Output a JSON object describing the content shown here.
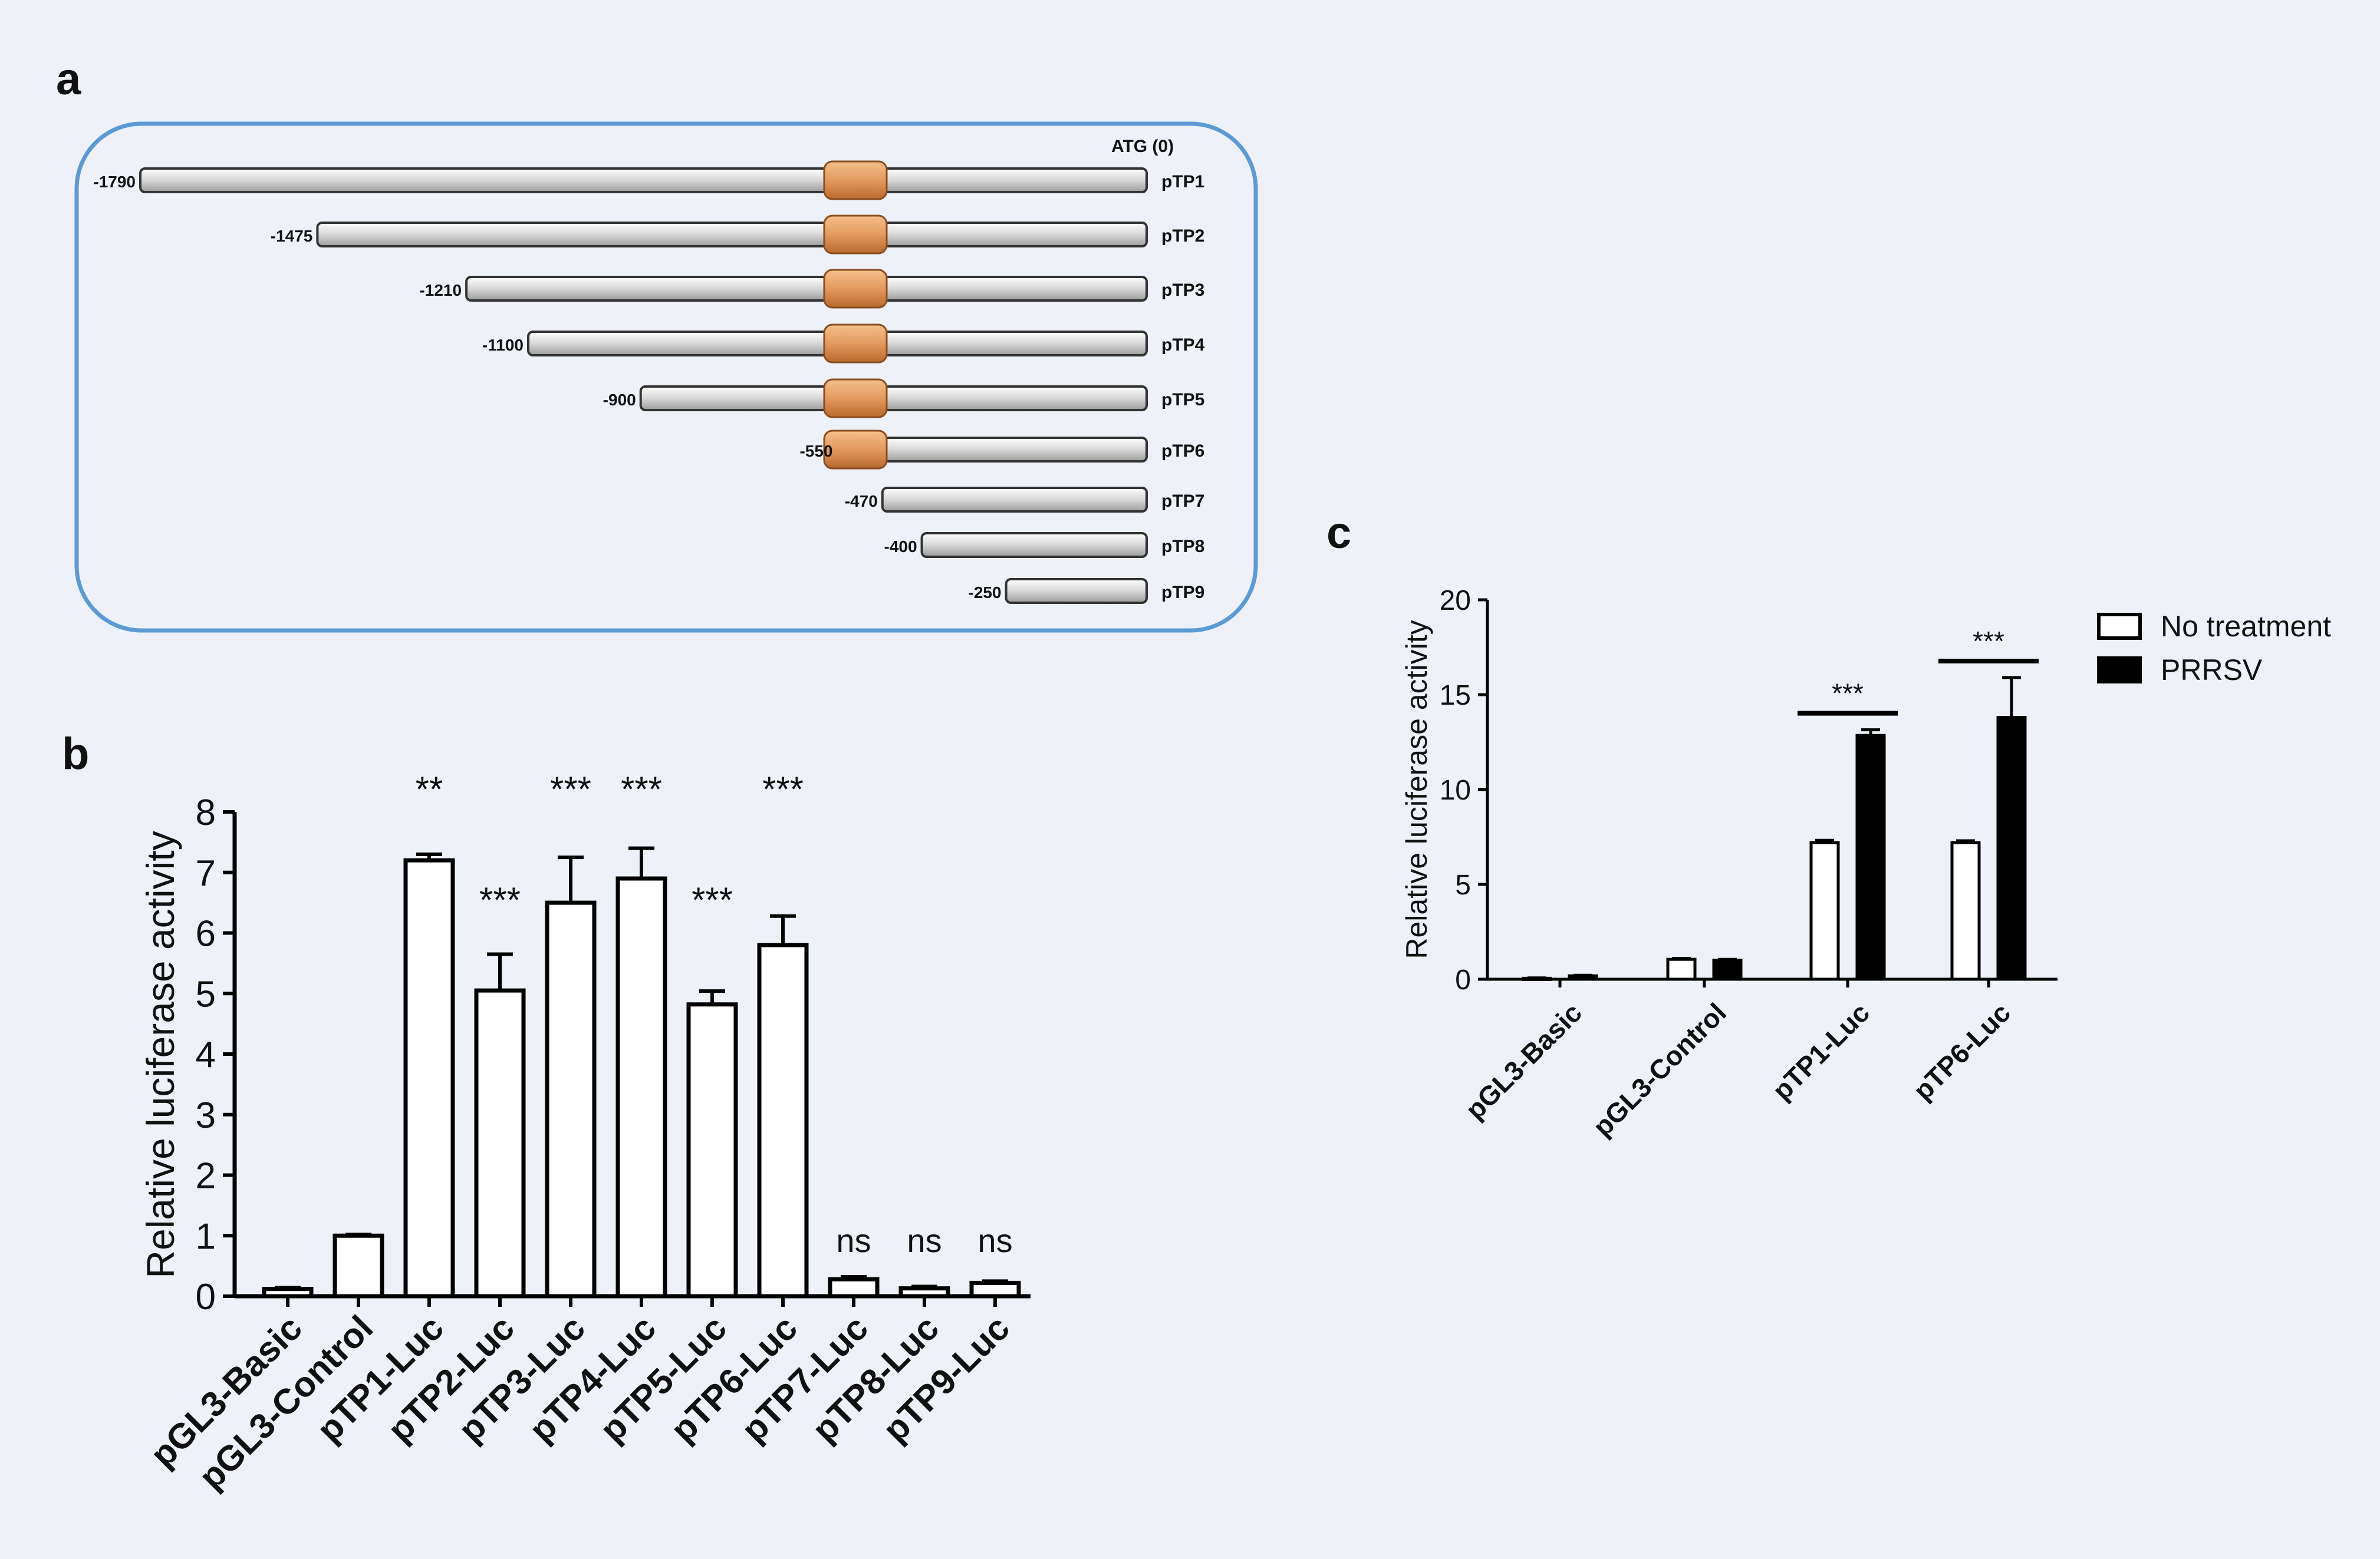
{
  "panels": {
    "a": {
      "letter": "a",
      "atg_label": "ATG  (0)",
      "constructs": [
        {
          "name": "pTP1",
          "start": -1790,
          "start_label": "-1790",
          "has_element": true
        },
        {
          "name": "pTP2",
          "start": -1475,
          "start_label": "-1475",
          "has_element": true
        },
        {
          "name": "pTP3",
          "start": -1210,
          "start_label": "-1210",
          "has_element": true
        },
        {
          "name": "pTP4",
          "start": -1100,
          "start_label": "-1100",
          "has_element": true
        },
        {
          "name": "pTP5",
          "start": -900,
          "start_label": "-900",
          "has_element": true
        },
        {
          "name": "pTP6",
          "start": -550,
          "start_label": "-550",
          "has_element": true
        },
        {
          "name": "pTP7",
          "start": -470,
          "start_label": "-470",
          "has_element": false
        },
        {
          "name": "pTP8",
          "start": -400,
          "start_label": "-400",
          "has_element": false
        },
        {
          "name": "pTP9",
          "start": -250,
          "start_label": "-250",
          "has_element": false
        }
      ],
      "colors": {
        "border": "#5b9bd5",
        "element": "#e39a5f",
        "bar": "#dcdcdc"
      }
    },
    "b": {
      "letter": "b"
    },
    "c": {
      "letter": "c"
    }
  },
  "chart_data": [
    {
      "id": "b",
      "type": "bar",
      "title": "",
      "xlabel": "",
      "ylabel": "Relative luciferase activity",
      "ylim": [
        0,
        8
      ],
      "yticks": [
        "0",
        "1",
        "2",
        "3",
        "4",
        "5",
        "6",
        "7",
        "8"
      ],
      "categories": [
        "pGL3-Basic",
        "pGL3-Control",
        "pTP1-Luc",
        "pTP2-Luc",
        "pTP3-Luc",
        "pTP4-Luc",
        "pTP5-Luc",
        "pTP6-Luc",
        "pTP7-Luc",
        "pTP8-Luc",
        "pTP9-Luc"
      ],
      "values": [
        0.12,
        1.0,
        7.2,
        5.05,
        6.5,
        6.9,
        4.82,
        5.8,
        0.28,
        0.13,
        0.22
      ],
      "errors": [
        0.02,
        0.02,
        0.1,
        0.6,
        0.75,
        0.5,
        0.22,
        0.48,
        0.04,
        0.03,
        0.03
      ],
      "annotations": [
        "",
        "",
        "**",
        "***",
        "***",
        "***",
        "***",
        "***",
        "ns",
        "ns",
        "ns"
      ],
      "colors": {
        "bar_fill": "#ffffff",
        "bar_edge": "#000000"
      }
    },
    {
      "id": "c",
      "type": "bar",
      "title": "",
      "xlabel": "",
      "ylabel": "Relative luciferase activity",
      "ylim": [
        0,
        20
      ],
      "yticks": [
        "0",
        "5",
        "10",
        "15",
        "20"
      ],
      "categories": [
        "pGL3-Basic",
        "pGL3-Control",
        "pTP1-Luc",
        "pTP6-Luc"
      ],
      "series": [
        {
          "name": "No treatment",
          "values": [
            0.05,
            1.05,
            7.2,
            7.2
          ],
          "errors": [
            0.02,
            0.05,
            0.12,
            0.1
          ],
          "color": "#ffffff"
        },
        {
          "name": "PRRSV",
          "values": [
            0.18,
            1.0,
            12.85,
            13.8
          ],
          "errors": [
            0.03,
            0.05,
            0.3,
            2.1
          ],
          "color": "#000000"
        }
      ],
      "significance": [
        {
          "pair": "pTP1-Luc",
          "label": "***"
        },
        {
          "pair": "pTP6-Luc",
          "label": "***"
        }
      ],
      "legend": "top-right"
    }
  ]
}
